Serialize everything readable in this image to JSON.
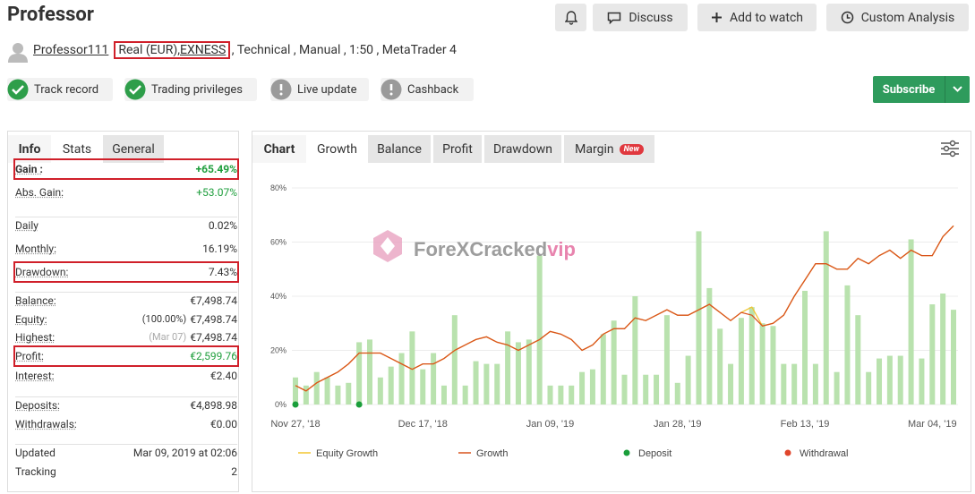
{
  "header": {
    "title": "Professor",
    "buttons": [
      "Discuss",
      "Add to watch",
      "Custom Analysis"
    ],
    "subscribe": "Subscribe"
  },
  "account": {
    "user": "Professor111",
    "type": "Real (EUR),",
    "broker": "EXNESS",
    "details": " , Technical , Manual , 1:50 , MetaTrader 4"
  },
  "badges": [
    "Track record",
    "Trading privileges",
    "Live update",
    "Cashback"
  ],
  "stats_tabs": [
    "Info",
    "Stats",
    "General"
  ],
  "stats": [
    [
      {
        "label": "Gain :",
        "value": "+65.49%",
        "highlight": true
      },
      {
        "label": "Abs. Gain:",
        "value": "+53.07%"
      }
    ],
    [
      {
        "label": "Daily",
        "value": "0.02%"
      },
      {
        "label": "Monthly:",
        "value": "16.19%"
      },
      {
        "label": "Drawdown:",
        "value": "7.43%",
        "highlight": true
      }
    ],
    [
      {
        "label": "Balance:",
        "value": "€7,498.74"
      },
      {
        "label": "Equity:",
        "note": "(100.00%)",
        "value": "€7,498.74"
      },
      {
        "label": "Highest:",
        "note": "(Mar 07)",
        "value": "€7,498.74"
      },
      {
        "label": "Profit:",
        "value": "€2,599.76",
        "highlight": true
      },
      {
        "label": "Interest:",
        "value": "€2.40"
      }
    ],
    [
      {
        "label": "Deposits:",
        "value": "€4,898.98"
      },
      {
        "label": "Withdrawals:",
        "value": "€0.00"
      }
    ],
    [
      {
        "label": "Updated",
        "value": "Mar 09, 2019 at 02:06"
      },
      {
        "label": "Tracking",
        "value": "2"
      }
    ]
  ],
  "chart_tabs": [
    "Chart",
    "Growth",
    "Balance",
    "Profit",
    "Drawdown",
    "Margin"
  ],
  "new_badge": "New",
  "watermark": {
    "text": "ForeXCracked",
    "suffix": "vip"
  },
  "chart_data": {
    "type": "bar-line",
    "categories": [
      "Nov 27, '18",
      null,
      null,
      null,
      null,
      null,
      null,
      null,
      null,
      null,
      null,
      null,
      "Dec 17, '18",
      null,
      null,
      null,
      null,
      null,
      null,
      null,
      null,
      null,
      null,
      null,
      "Jan 09, '19",
      null,
      null,
      null,
      null,
      null,
      null,
      null,
      null,
      null,
      null,
      null,
      "Jan 28, '19",
      null,
      null,
      null,
      null,
      null,
      null,
      null,
      null,
      null,
      null,
      null,
      "Feb 13, '19",
      null,
      null,
      null,
      null,
      null,
      null,
      null,
      null,
      null,
      null,
      null,
      "Mar 04, '19",
      null,
      null
    ],
    "bars": {
      "color": "#b9e2ae",
      "values": [
        10,
        7,
        12,
        10,
        7,
        8,
        23,
        24,
        10,
        14,
        19,
        27,
        13,
        19,
        7,
        33,
        7,
        16,
        15,
        15,
        27,
        23,
        24,
        55,
        7,
        7,
        7,
        12,
        13,
        26,
        31,
        11,
        40,
        11,
        11,
        33,
        8,
        18,
        64,
        43,
        28,
        15,
        32,
        36,
        30,
        29,
        15,
        15,
        42,
        15,
        64,
        12,
        44,
        33,
        12,
        17,
        18,
        18,
        61,
        17,
        37,
        41,
        35
      ]
    },
    "series": [
      {
        "name": "Equity Growth",
        "color": "#f2c531",
        "values": [
          7,
          5,
          8,
          10,
          12,
          15,
          19,
          19,
          19,
          17,
          15,
          13,
          15,
          15,
          17,
          20,
          22,
          24,
          25,
          23,
          22,
          20,
          22,
          24,
          27,
          26,
          24,
          20,
          22,
          26,
          28,
          28,
          32,
          31,
          33,
          35,
          33,
          33,
          35,
          37,
          34,
          31,
          34,
          36,
          29,
          30,
          33,
          40,
          46,
          52,
          52,
          50,
          50,
          54,
          52,
          55,
          57,
          54,
          57,
          55,
          55,
          62,
          66
        ]
      },
      {
        "name": "Growth",
        "color": "#d9531e",
        "values": [
          7,
          5,
          8,
          10,
          12,
          15,
          19,
          19,
          19,
          17,
          15,
          13,
          15,
          15,
          17,
          20,
          22,
          24,
          25,
          23,
          22,
          20,
          22,
          24,
          27,
          26,
          24,
          20,
          22,
          26,
          28,
          28,
          32,
          31,
          33,
          35,
          33,
          33,
          35,
          37,
          34,
          31,
          34,
          33,
          29,
          30,
          33,
          40,
          46,
          52,
          52,
          50,
          50,
          54,
          52,
          55,
          57,
          54,
          57,
          55,
          55,
          62,
          66
        ]
      }
    ],
    "markers": [
      {
        "name": "Deposit",
        "color": "#1a9e3a",
        "x": [
          0,
          6
        ],
        "values": [
          0,
          0
        ]
      },
      {
        "name": "Withdrawal",
        "color": "#e0452b",
        "x": [],
        "values": []
      }
    ],
    "ylim": [
      0,
      80
    ],
    "yticks": [
      {
        "value": 0,
        "label": "0%"
      },
      {
        "value": 20,
        "label": "20%"
      },
      {
        "value": 40,
        "label": "40%"
      },
      {
        "value": 60,
        "label": "60%"
      },
      {
        "value": 80,
        "label": "80%"
      }
    ],
    "grid": true
  }
}
